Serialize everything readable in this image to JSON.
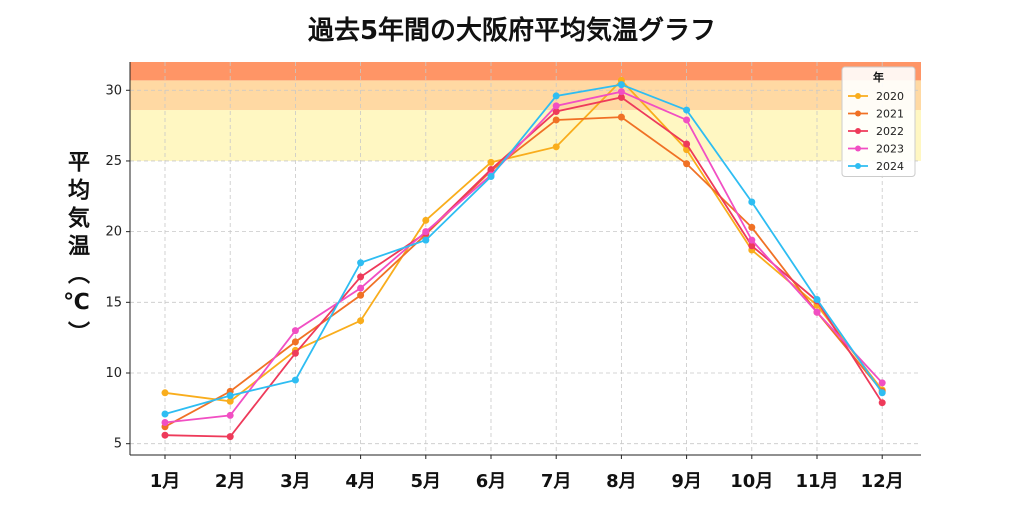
{
  "chart_data": {
    "type": "line",
    "title": "過去5年間の大阪府平均気温グラフ",
    "ylabel": "平均気温（℃）",
    "xlabel": "",
    "categories": [
      "1月",
      "2月",
      "3月",
      "4月",
      "5月",
      "6月",
      "7月",
      "8月",
      "9月",
      "10月",
      "11月",
      "12月"
    ],
    "ylim": [
      4.2,
      32
    ],
    "yticks": [
      5,
      10,
      15,
      20,
      25,
      30
    ],
    "grid": true,
    "legend": {
      "title": "年",
      "position": "top-right"
    },
    "bands": [
      {
        "from": 25,
        "to": 28.6,
        "color": "#fff7c2"
      },
      {
        "from": 28.6,
        "to": 30.7,
        "color": "#ffd9a3"
      },
      {
        "from": 30.7,
        "to": 32,
        "color": "#ff9566"
      }
    ],
    "series": [
      {
        "name": "2020",
        "color": "#f9ad1c",
        "values": [
          8.6,
          8.0,
          11.6,
          13.7,
          20.8,
          24.9,
          26.0,
          30.7,
          25.8,
          18.7,
          14.8,
          8.8
        ]
      },
      {
        "name": "2021",
        "color": "#f07125",
        "values": [
          6.2,
          8.7,
          12.2,
          15.5,
          19.8,
          24.3,
          27.9,
          28.1,
          24.8,
          20.3,
          14.3,
          8.7
        ]
      },
      {
        "name": "2022",
        "color": "#ee3a5a",
        "values": [
          5.6,
          5.5,
          11.4,
          16.8,
          19.9,
          24.4,
          28.5,
          29.5,
          26.2,
          19.0,
          15.1,
          7.9
        ]
      },
      {
        "name": "2023",
        "color": "#f14fc3",
        "values": [
          6.5,
          7.0,
          13.0,
          16.0,
          20.0,
          24.0,
          28.9,
          29.9,
          27.9,
          19.4,
          14.3,
          9.3
        ]
      },
      {
        "name": "2024",
        "color": "#2ebdf2",
        "values": [
          7.1,
          8.4,
          9.5,
          17.8,
          19.4,
          23.9,
          29.6,
          30.4,
          28.6,
          22.1,
          15.2,
          8.6
        ]
      }
    ]
  }
}
